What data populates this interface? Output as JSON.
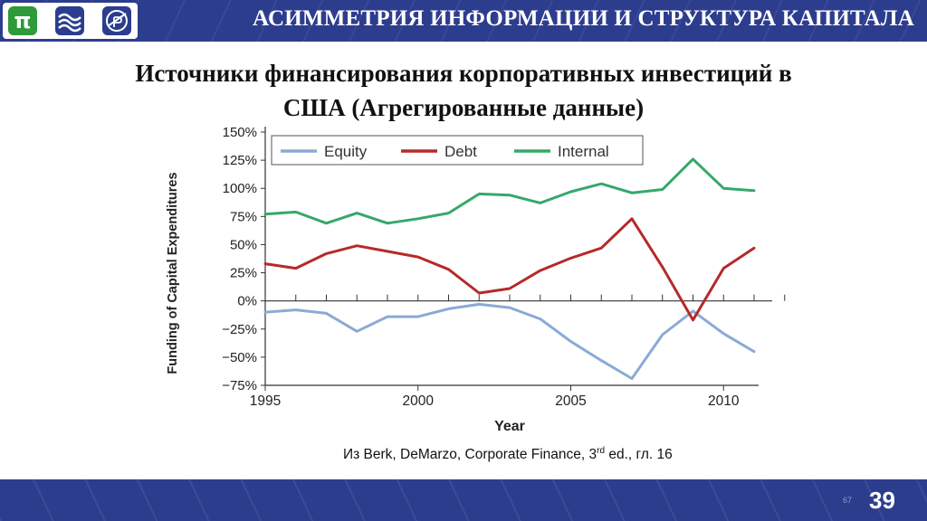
{
  "header": {
    "title": "АСИММЕТРИЯ ИНФОРМАЦИИ И СТРУКТУРА КАПИТАЛА"
  },
  "slide": {
    "title_line1": "Источники финансирования корпоративных инвестиций в",
    "title_line2": "США (Агрегированные данные)",
    "source_before": "Из Berk, DeMarzo, Corporate Finance, 3",
    "source_sup": "rd",
    "source_after": " ed., гл. 16",
    "small_page": "67",
    "page_number": "39"
  },
  "colors": {
    "bar": "#2d3d8e",
    "equity": "#8aaad6",
    "debt": "#b52a2a",
    "internal": "#35a86a"
  },
  "chart_data": {
    "type": "line",
    "xlabel": "Year",
    "ylabel": "Funding of Capital Expenditures",
    "xlim": [
      1995,
      2011
    ],
    "ylim": [
      -75,
      150
    ],
    "x_ticks": [
      1995,
      2000,
      2005,
      2010
    ],
    "y_ticks": [
      -75,
      -50,
      -25,
      0,
      25,
      50,
      75,
      100,
      125,
      150
    ],
    "y_tick_labels": [
      "−75%",
      "−50%",
      "−25%",
      "0%",
      "25%",
      "50%",
      "75%",
      "100%",
      "125%",
      "150%"
    ],
    "legend_position": "top",
    "x": [
      1995,
      1996,
      1997,
      1998,
      1999,
      2000,
      2001,
      2002,
      2003,
      2004,
      2005,
      2006,
      2007,
      2008,
      2009,
      2010,
      2011
    ],
    "series": [
      {
        "name": "Equity",
        "color": "#8aaad6",
        "values": [
          -10,
          -8,
          -11,
          -27,
          -14,
          -14,
          -7,
          -3,
          -6,
          -16,
          -36,
          -53,
          -69,
          -30,
          -9,
          -29,
          -45
        ]
      },
      {
        "name": "Debt",
        "color": "#b52a2a",
        "values": [
          33,
          29,
          42,
          49,
          44,
          39,
          28,
          7,
          11,
          27,
          38,
          47,
          73,
          30,
          -17,
          29,
          47
        ]
      },
      {
        "name": "Internal",
        "color": "#35a86a",
        "values": [
          77,
          79,
          69,
          78,
          69,
          73,
          78,
          95,
          94,
          87,
          97,
          104,
          96,
          99,
          126,
          100,
          98
        ]
      }
    ]
  }
}
